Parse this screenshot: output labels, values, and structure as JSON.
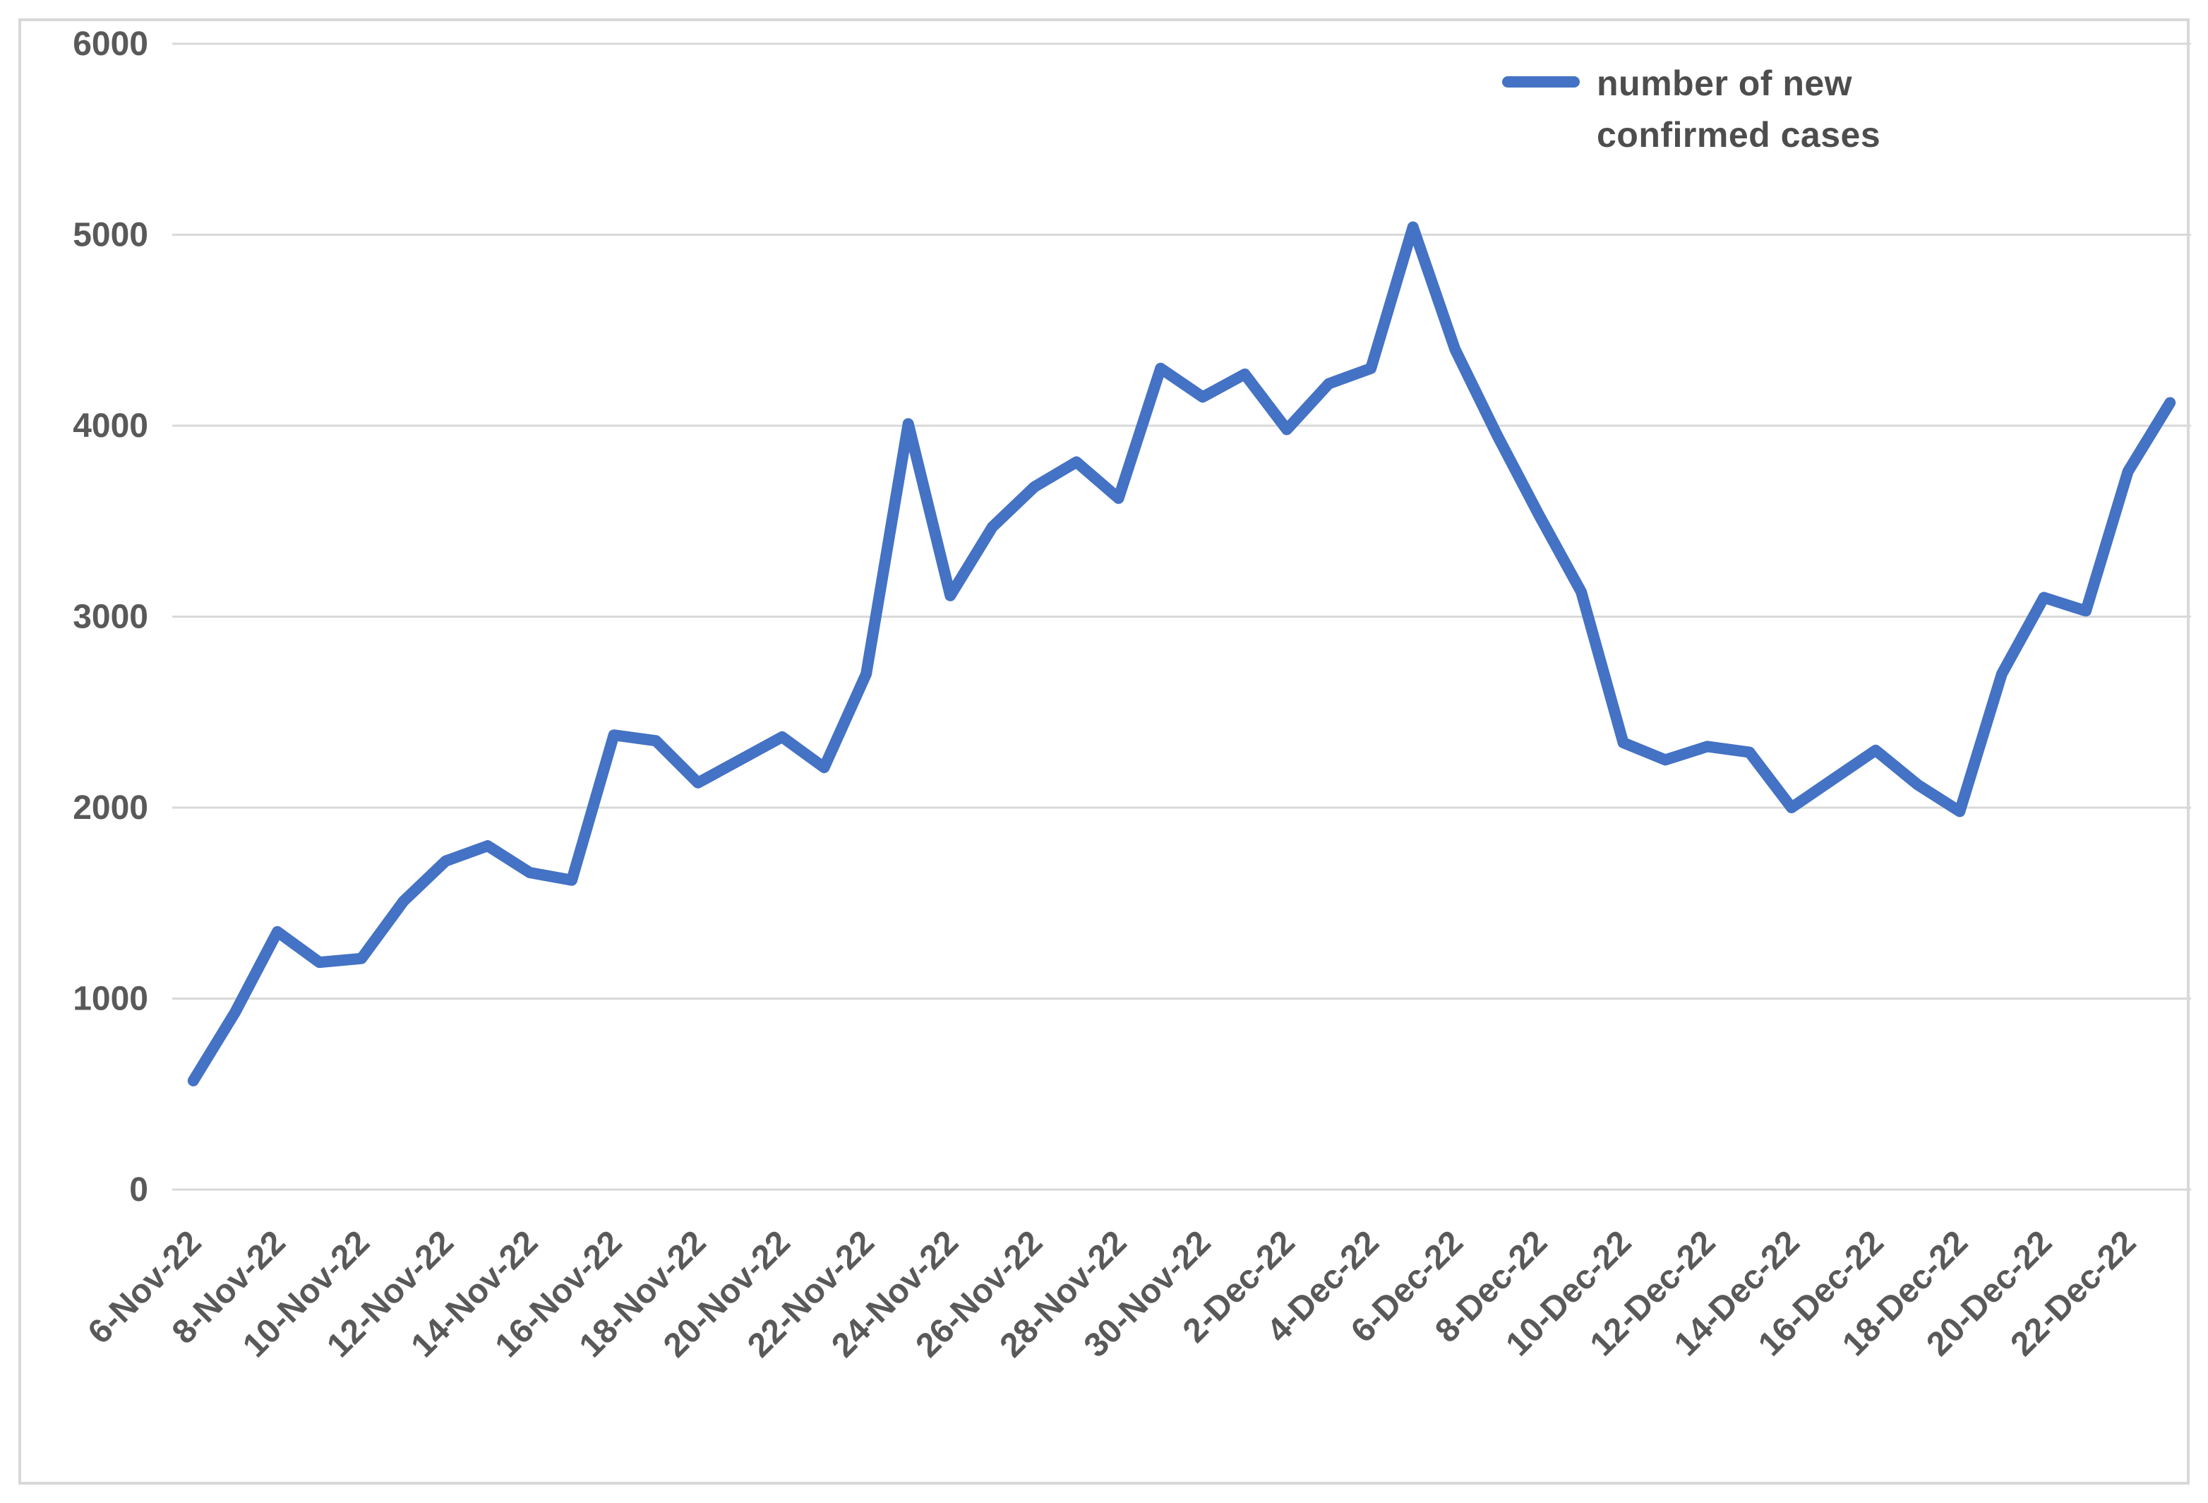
{
  "chart_data": {
    "type": "line",
    "title": "",
    "xlabel": "",
    "ylabel": "",
    "ylim": [
      0,
      6000
    ],
    "y_ticks": [
      0,
      1000,
      2000,
      3000,
      4000,
      5000,
      6000
    ],
    "grid": true,
    "legend_position": "top-right",
    "x_tick_step": 2,
    "categories": [
      "6-Nov-22",
      "7-Nov-22",
      "8-Nov-22",
      "9-Nov-22",
      "10-Nov-22",
      "11-Nov-22",
      "12-Nov-22",
      "13-Nov-22",
      "14-Nov-22",
      "15-Nov-22",
      "16-Nov-22",
      "17-Nov-22",
      "18-Nov-22",
      "19-Nov-22",
      "20-Nov-22",
      "21-Nov-22",
      "22-Nov-22",
      "23-Nov-22",
      "24-Nov-22",
      "25-Nov-22",
      "26-Nov-22",
      "27-Nov-22",
      "28-Nov-22",
      "29-Nov-22",
      "30-Nov-22",
      "1-Dec-22",
      "2-Dec-22",
      "3-Dec-22",
      "4-Dec-22",
      "5-Dec-22",
      "6-Dec-22",
      "7-Dec-22",
      "8-Dec-22",
      "9-Dec-22",
      "10-Dec-22",
      "11-Dec-22",
      "12-Dec-22",
      "13-Dec-22",
      "14-Dec-22",
      "15-Dec-22",
      "16-Dec-22",
      "17-Dec-22",
      "18-Dec-22",
      "19-Dec-22",
      "20-Dec-22",
      "21-Dec-22",
      "22-Dec-22",
      "23-Dec-22"
    ],
    "series": [
      {
        "name": "number of new confirmed cases",
        "color": "#4472c4",
        "values": [
          570,
          930,
          1350,
          1190,
          1210,
          1510,
          1720,
          1800,
          1660,
          1620,
          2380,
          2350,
          2130,
          2250,
          2370,
          2210,
          2700,
          4010,
          3110,
          3470,
          3680,
          3810,
          3620,
          4300,
          4150,
          4270,
          3980,
          4220,
          4300,
          5040,
          4400,
          3950,
          3530,
          3130,
          2340,
          2250,
          2320,
          2290,
          2000,
          2150,
          2300,
          2120,
          1980,
          2700,
          3100,
          3030,
          3760,
          4120
        ]
      }
    ]
  },
  "legend": {
    "label": "number of new confirmed cases"
  },
  "colors": {
    "line": "#4472c4",
    "gridline": "#d9d9d9",
    "axis_label": "#595959",
    "frame_border": "#d9d9d9",
    "background": "#ffffff"
  }
}
